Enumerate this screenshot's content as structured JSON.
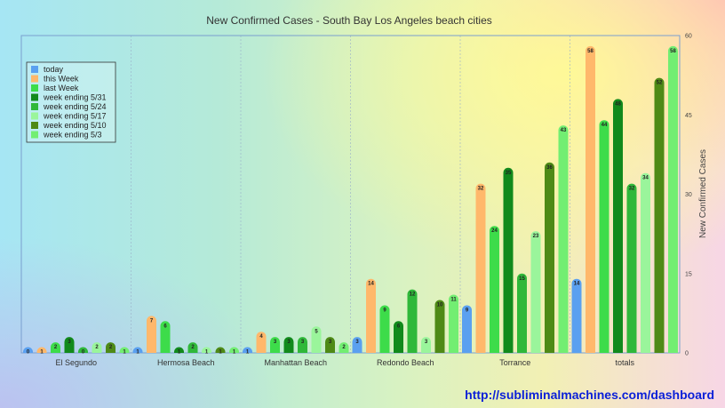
{
  "chart_data": {
    "type": "bar",
    "title": "New Confirmed Cases - South Bay Los Angeles beach cities",
    "ylabel": "New Confirmed Cases",
    "ylim": [
      0,
      60
    ],
    "yticks": [
      0,
      15,
      30,
      45,
      60
    ],
    "y_axis_side": "right",
    "legend_position": "top-left",
    "categories": [
      "El Segundo",
      "Hermosa Beach",
      "Manhattan Beach",
      "Redondo Beach",
      "Torrance",
      "totals"
    ],
    "series": [
      {
        "name": "today",
        "color": "#5aa0f0",
        "values": [
          0,
          1,
          1,
          3,
          9,
          14
        ]
      },
      {
        "name": "this Week",
        "color": "#ffb86b",
        "values": [
          1,
          7,
          4,
          14,
          32,
          58
        ]
      },
      {
        "name": "last Week",
        "color": "#3ddc4a",
        "values": [
          2,
          6,
          3,
          9,
          24,
          44
        ]
      },
      {
        "name": "week ending 5/31",
        "color": "#118a1c",
        "values": [
          3,
          1,
          3,
          6,
          35,
          48
        ]
      },
      {
        "name": "week ending 5/24",
        "color": "#2fb83a",
        "values": [
          0,
          2,
          3,
          12,
          15,
          32
        ]
      },
      {
        "name": "week ending 5/17",
        "color": "#9af59b",
        "values": [
          2,
          1,
          5,
          3,
          23,
          34
        ]
      },
      {
        "name": "week ending 5/10",
        "color": "#4e8a16",
        "values": [
          2,
          1,
          3,
          10,
          36,
          52
        ]
      },
      {
        "name": "week ending 5/3",
        "color": "#72ee72",
        "values": [
          1,
          1,
          2,
          11,
          43,
          58
        ]
      }
    ]
  },
  "footer": {
    "url": "http://subliminalmachines.com/dashboard"
  }
}
